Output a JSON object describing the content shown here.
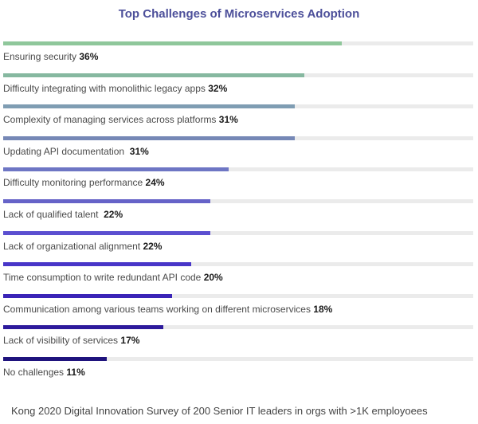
{
  "chart_data": {
    "type": "bar",
    "orientation": "horizontal",
    "title": "Top Challenges of Microservices Adoption",
    "xlim": [
      0,
      50
    ],
    "unit": "%",
    "categories": [
      "Ensuring security",
      "Difficulty integrating with monolithic legacy apps",
      "Complexity of managing services across platforms",
      "Updating API documentation ",
      "Difficulty monitoring performance",
      "Lack of qualified talent ",
      "Lack of organizational alignment",
      "Time consumption to write redundant API code",
      "Communication among various teams working on different microservices",
      "Lack of visibility of services",
      "No challenges"
    ],
    "values": [
      36,
      32,
      31,
      31,
      24,
      22,
      22,
      20,
      18,
      17,
      11
    ],
    "value_labels": [
      "36%",
      "32%",
      "31%",
      "31%",
      "24%",
      "22%",
      "22%",
      "20%",
      "18%",
      "17%",
      "11%"
    ],
    "colors": [
      "#8fc79b",
      "#86b8a0",
      "#7f9db3",
      "#7688b6",
      "#6e76c4",
      "#6663c8",
      "#5b4fd0",
      "#4836c8",
      "#3a24b7",
      "#2d1a9c",
      "#1f137d"
    ]
  },
  "footer": "Kong 2020 Digital Innovation Survey of 200 Senior IT leaders in orgs with >1K employoees"
}
